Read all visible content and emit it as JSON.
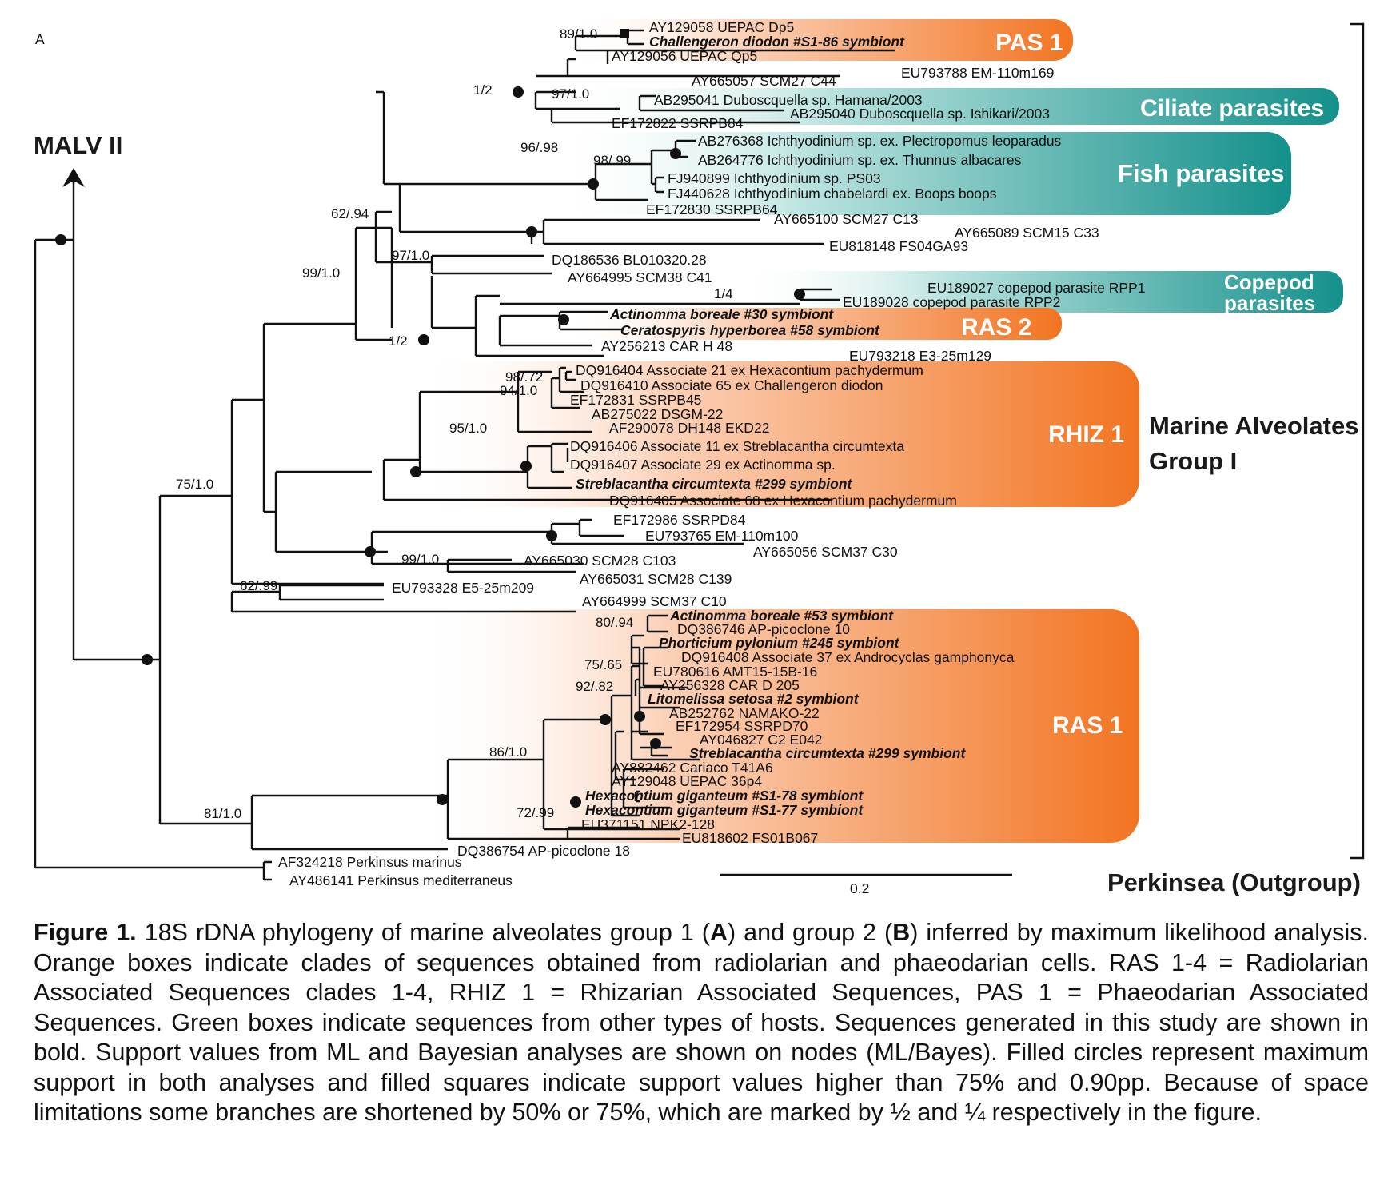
{
  "panel_label": "A",
  "arrow_label": "MALV II",
  "scale_bar_label": "0.2",
  "group_labels": {
    "malv1_line1": "Marine Alveolates",
    "malv1_line2": "Group I",
    "outgroup": "Perkinsea (Outgroup)"
  },
  "clades": [
    {
      "id": "pas1",
      "name": "PAS 1",
      "color": "#f37a29"
    },
    {
      "id": "ciliate",
      "name": "Ciliate parasites",
      "color": "#1a9b96"
    },
    {
      "id": "fish",
      "name": "Fish parasites",
      "color": "#1a9b96"
    },
    {
      "id": "copepod",
      "name": "Copepod parasites",
      "name_line1": "Copepod",
      "name_line2": "parasites",
      "color": "#1a9b96"
    },
    {
      "id": "ras2",
      "name": "RAS 2",
      "color": "#f37a29"
    },
    {
      "id": "rhiz1",
      "name": "RHIZ 1",
      "color": "#f37a29"
    },
    {
      "id": "ras1",
      "name": "RAS 1",
      "color": "#f37a29"
    }
  ],
  "taxa": [
    {
      "label": "AY129058 UEPAC Dp5"
    },
    {
      "label": "Challengeron diodon #S1-86 symbiont",
      "bold": true
    },
    {
      "label": "AY129056 UEPAC Qp5"
    },
    {
      "label": "EU793788 EM-110m169"
    },
    {
      "label": "AY665057 SCM27 C44"
    },
    {
      "label": "AB295041 Duboscquella sp. Hamana/2003",
      "italic_part": "Duboscquella"
    },
    {
      "label": "AB295040 Duboscquella sp. Ishikari/2003",
      "italic_part": "Duboscquella"
    },
    {
      "label": "EF172822 SSRPB84"
    },
    {
      "label": "AB276368 Ichthyodinium sp. ex. Plectropomus leoparadus"
    },
    {
      "label": "AB264776 Ichthyodinium sp. ex. Thunnus albacares"
    },
    {
      "label": "FJ940899 Ichthyodinium sp. PS03"
    },
    {
      "label": "FJ440628 Ichthyodinium chabelardi ex. Boops boops"
    },
    {
      "label": "EF172830 SSRPB64"
    },
    {
      "label": "AY665100 SCM27 C13"
    },
    {
      "label": "AY665089 SCM15 C33"
    },
    {
      "label": "EU818148 FS04GA93"
    },
    {
      "label": "DQ186536 BL010320.28"
    },
    {
      "label": "AY664995 SCM38 C41"
    },
    {
      "label": "EU189027 copepod parasite RPP1"
    },
    {
      "label": "EU189028 copepod parasite RPP2"
    },
    {
      "label": "Actinomma boreale #30 symbiont",
      "bold": true
    },
    {
      "label": "Ceratospyris hyperborea #58 symbiont",
      "bold": true
    },
    {
      "label": "AY256213 CAR H 48"
    },
    {
      "label": "EU793218 E3-25m129"
    },
    {
      "label": "DQ916404 Associate 21 ex Hexacontium pachydermum"
    },
    {
      "label": "DQ916410 Associate 65 ex Challengeron diodon"
    },
    {
      "label": "EF172831 SSRPB45"
    },
    {
      "label": "AB275022 DSGM-22"
    },
    {
      "label": "AF290078 DH148 EKD22"
    },
    {
      "label": "DQ916406 Associate 11 ex Streblacantha circumtexta"
    },
    {
      "label": "DQ916407 Associate 29 ex Actinomma sp."
    },
    {
      "label": "Streblacantha circumtexta #299 symbiont",
      "bold": true
    },
    {
      "label": "DQ916405 Associate 68 ex Hexacontium pachydermum"
    },
    {
      "label": "EF172986 SSRPD84"
    },
    {
      "label": "EU793765 EM-110m100"
    },
    {
      "label": "AY665056 SCM37 C30"
    },
    {
      "label": "AY665030 SCM28 C103"
    },
    {
      "label": "AY665031 SCM28 C139"
    },
    {
      "label": "EU793328 E5-25m209"
    },
    {
      "label": "AY664999 SCM37 C10"
    },
    {
      "label": "Actinomma boreale #53 symbiont",
      "bold": true
    },
    {
      "label": "DQ386746 AP-picoclone 10"
    },
    {
      "label": "Phorticium pylonium #245 symbiont",
      "bold": true
    },
    {
      "label": "DQ916408 Associate 37 ex Androcyclas gamphonyca"
    },
    {
      "label": "EU780616 AMT15-15B-16"
    },
    {
      "label": "AY256328 CAR D 205"
    },
    {
      "label": "Litomelissa setosa #2 symbiont",
      "bold": true
    },
    {
      "label": "AB252762 NAMAKO-22"
    },
    {
      "label": "EF172954 SSRPD70"
    },
    {
      "label": "AY046827 C2 E042"
    },
    {
      "label": "Streblacantha circumtexta #299 symbiont",
      "bold": true
    },
    {
      "label": "AY882462 Cariaco T41A6"
    },
    {
      "label": "AY129048 UEPAC 36p4"
    },
    {
      "label": "Hexacontium giganteum #S1-78 symbiont",
      "bold": true
    },
    {
      "label": "Hexacontium giganteum #S1-77 symbiont",
      "bold": true
    },
    {
      "label": "EU371151 NPK2-128"
    },
    {
      "label": "EU818602 FS01B067"
    },
    {
      "label": "DQ386754 AP-picoclone 18"
    },
    {
      "label": "AF324218 Perkinsus marinus"
    },
    {
      "label": "AY486141 Perkinsus mediterraneus"
    }
  ],
  "support_values": [
    "89/1.0",
    "1/2",
    "97/1.0",
    "96/.98",
    "98/.99",
    "62/.94",
    "97/1.0",
    "99/1.0",
    "1/4",
    "1/2",
    "98/.72",
    "94/1.0",
    "95/1.0",
    "75/1.0",
    "99/1.0",
    "62/.99",
    "80/.94",
    "75/.65",
    "92/.82",
    "86/1.0",
    "72/.99",
    "81/1.0"
  ],
  "caption": {
    "lead": "Figure 1.",
    "p1": " 18S rDNA phylogeny of marine alveolates group 1 (",
    "a": "A",
    "p2": ") and group 2 (",
    "b": "B",
    "p3": ") inferred by maximum likelihood analysis. Orange boxes indicate clades of sequences obtained from radiolarian and phaeodarian cells. RAS 1-4 = Radiolarian Associated Sequences clades 1-4, RHIZ 1 = Rhizarian Associated Sequences, PAS 1 = Phaeodarian Associated Sequences. Green boxes indicate sequences from other types of hosts. Sequences generated in this study are shown in bold. Support values from ML and Bayesian analyses are shown on nodes (ML/Bayes). Filled circles represent maximum support in both analyses and filled squares indicate support values higher than 75% and 0.90pp. Because of space limitations some branches are shortened by 50% or 75%, which are marked by ½ and ¼ respectively in the figure."
  }
}
